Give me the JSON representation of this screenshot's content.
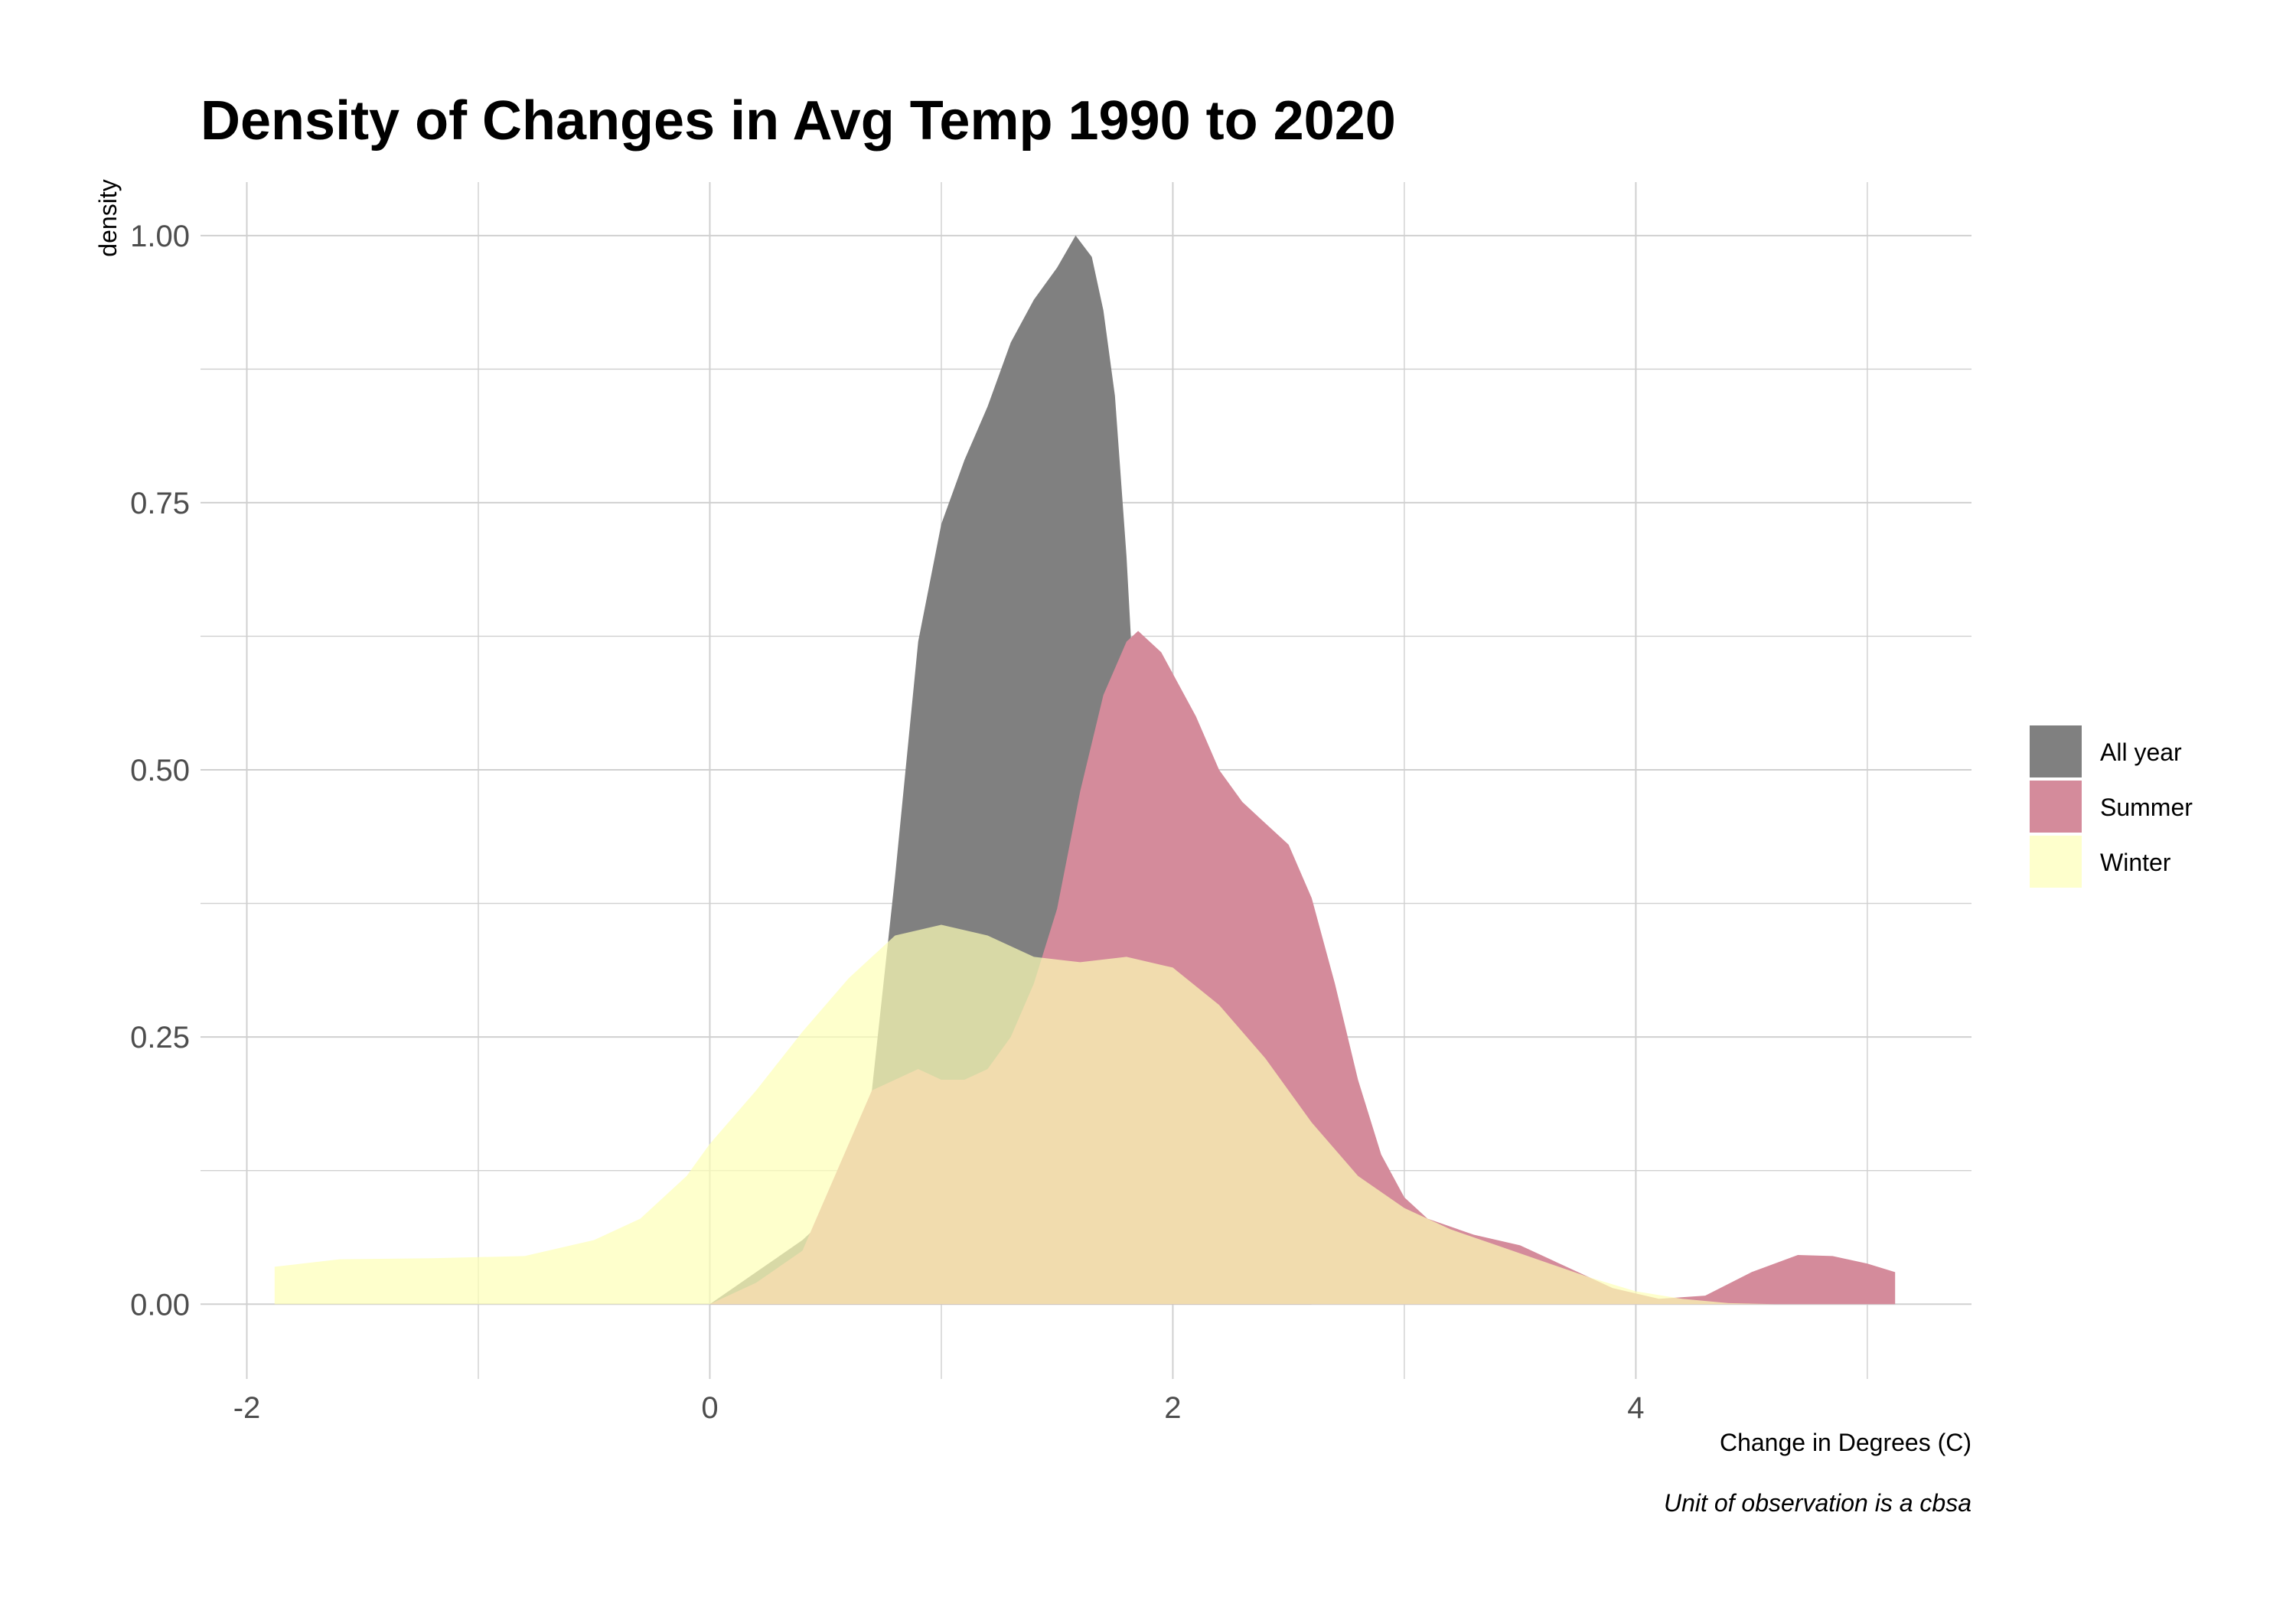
{
  "chart_data": {
    "type": "area",
    "title": "Density of Changes in Avg Temp 1990 to 2020",
    "xlabel": "Change in Degrees (C)",
    "ylabel": "density",
    "caption": "Unit of observation is a cbsa",
    "xlim": [
      -2.2,
      5.45
    ],
    "ylim": [
      -0.07,
      1.05
    ],
    "x_ticks": [
      -2,
      0,
      2,
      4
    ],
    "x_tick_labels": [
      "-2",
      "0",
      "2",
      "4"
    ],
    "x_minor_ticks": [
      -1,
      1,
      3,
      5
    ],
    "y_ticks": [
      0,
      0.25,
      0.5,
      0.75,
      1.0
    ],
    "y_tick_labels": [
      "0.00",
      "0.25",
      "0.50",
      "0.75",
      "1.00"
    ],
    "y_minor_ticks": [
      0.125,
      0.375,
      0.625,
      0.875
    ],
    "grid": true,
    "legend": "right",
    "series": [
      {
        "name": "All year",
        "color": "#808080",
        "opacity": 1,
        "points": [
          [
            0.0,
            0.0
          ],
          [
            0.2,
            0.03
          ],
          [
            0.4,
            0.06
          ],
          [
            0.5,
            0.08
          ],
          [
            0.6,
            0.12
          ],
          [
            0.7,
            0.2
          ],
          [
            0.8,
            0.4
          ],
          [
            0.9,
            0.62
          ],
          [
            1.0,
            0.73
          ],
          [
            1.1,
            0.79
          ],
          [
            1.2,
            0.84
          ],
          [
            1.3,
            0.9
          ],
          [
            1.4,
            0.94
          ],
          [
            1.5,
            0.97
          ],
          [
            1.58,
            1.0
          ],
          [
            1.65,
            0.98
          ],
          [
            1.7,
            0.93
          ],
          [
            1.75,
            0.85
          ],
          [
            1.8,
            0.7
          ],
          [
            1.85,
            0.5
          ],
          [
            1.9,
            0.32
          ],
          [
            1.95,
            0.2
          ],
          [
            2.0,
            0.12
          ],
          [
            2.1,
            0.08
          ],
          [
            2.15,
            0.07
          ],
          [
            2.25,
            0.07
          ],
          [
            2.35,
            0.06
          ],
          [
            2.45,
            0.03
          ],
          [
            2.6,
            0.0
          ],
          [
            2.7,
            0.0
          ]
        ]
      },
      {
        "name": "Summer",
        "color": "#d48b9b",
        "opacity": 1,
        "points": [
          [
            0.0,
            0.0
          ],
          [
            0.2,
            0.02
          ],
          [
            0.4,
            0.05
          ],
          [
            0.5,
            0.1
          ],
          [
            0.6,
            0.15
          ],
          [
            0.7,
            0.2
          ],
          [
            0.8,
            0.21
          ],
          [
            0.9,
            0.22
          ],
          [
            1.0,
            0.21
          ],
          [
            1.1,
            0.21
          ],
          [
            1.2,
            0.22
          ],
          [
            1.3,
            0.25
          ],
          [
            1.4,
            0.3
          ],
          [
            1.5,
            0.37
          ],
          [
            1.6,
            0.48
          ],
          [
            1.7,
            0.57
          ],
          [
            1.8,
            0.62
          ],
          [
            1.85,
            0.63
          ],
          [
            1.95,
            0.61
          ],
          [
            2.1,
            0.55
          ],
          [
            2.2,
            0.5
          ],
          [
            2.3,
            0.47
          ],
          [
            2.4,
            0.45
          ],
          [
            2.5,
            0.43
          ],
          [
            2.6,
            0.38
          ],
          [
            2.7,
            0.3
          ],
          [
            2.8,
            0.21
          ],
          [
            2.9,
            0.14
          ],
          [
            3.0,
            0.1
          ],
          [
            3.1,
            0.08
          ],
          [
            3.3,
            0.065
          ],
          [
            3.5,
            0.055
          ],
          [
            3.7,
            0.035
          ],
          [
            3.9,
            0.015
          ],
          [
            4.1,
            0.005
          ],
          [
            4.3,
            0.008
          ],
          [
            4.5,
            0.03
          ],
          [
            4.7,
            0.046
          ],
          [
            4.85,
            0.045
          ],
          [
            5.0,
            0.038
          ],
          [
            5.12,
            0.03
          ],
          [
            5.12,
            0.0
          ]
        ]
      },
      {
        "name": "Winter",
        "color": "#fdffb6",
        "opacity": 0.7,
        "points": [
          [
            -1.88,
            0.0
          ],
          [
            -1.88,
            0.035
          ],
          [
            -1.6,
            0.042
          ],
          [
            -1.2,
            0.043
          ],
          [
            -0.8,
            0.045
          ],
          [
            -0.5,
            0.06
          ],
          [
            -0.3,
            0.08
          ],
          [
            -0.1,
            0.12
          ],
          [
            0.0,
            0.15
          ],
          [
            0.2,
            0.2
          ],
          [
            0.4,
            0.255
          ],
          [
            0.6,
            0.305
          ],
          [
            0.8,
            0.345
          ],
          [
            1.0,
            0.355
          ],
          [
            1.2,
            0.345
          ],
          [
            1.4,
            0.325
          ],
          [
            1.6,
            0.32
          ],
          [
            1.8,
            0.325
          ],
          [
            2.0,
            0.315
          ],
          [
            2.2,
            0.28
          ],
          [
            2.4,
            0.23
          ],
          [
            2.6,
            0.17
          ],
          [
            2.8,
            0.12
          ],
          [
            3.0,
            0.09
          ],
          [
            3.2,
            0.07
          ],
          [
            3.4,
            0.055
          ],
          [
            3.6,
            0.04
          ],
          [
            3.8,
            0.025
          ],
          [
            4.0,
            0.012
          ],
          [
            4.2,
            0.005
          ],
          [
            4.4,
            0.001
          ],
          [
            4.6,
            0.0
          ]
        ]
      }
    ]
  }
}
